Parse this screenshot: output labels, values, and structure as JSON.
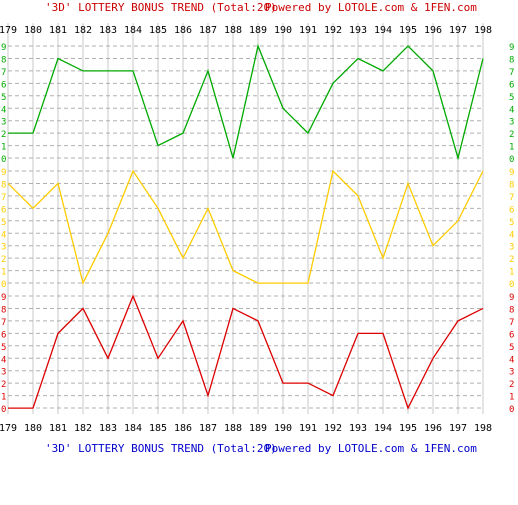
{
  "header": {
    "title_text": "'3D' LOTTERY BONUS TREND (Total:20)",
    "powered_text": "Powered by LOTOLE.com & 1FEN.com"
  },
  "footer": {
    "title_text": "'3D' LOTTERY BONUS TREND (Total:20)",
    "powered_text": "Powered by LOTOLE.com & 1FEN.com"
  },
  "colors": {
    "header_title": "#cc0000",
    "footer_title": "#0000cc",
    "grid_solid": "#c8c8c8",
    "grid_dash": "#b0b0b0",
    "axis_text": "#000000"
  },
  "chart_data": {
    "type": "line",
    "x": [
      "179",
      "180",
      "181",
      "182",
      "183",
      "184",
      "185",
      "186",
      "187",
      "188",
      "189",
      "190",
      "191",
      "192",
      "193",
      "194",
      "195",
      "196",
      "197",
      "198"
    ],
    "y_ticks": [
      "0",
      "1",
      "2",
      "3",
      "4",
      "5",
      "6",
      "7",
      "8",
      "9"
    ],
    "ylim": [
      0,
      9
    ],
    "grid": true,
    "series": [
      {
        "color": "#00aa00",
        "values": [
          2,
          2,
          8,
          7,
          7,
          7,
          1,
          2,
          7,
          0,
          9,
          4,
          2,
          6,
          8,
          7,
          9,
          7,
          0,
          8
        ]
      },
      {
        "color": "#ffcc00",
        "values": [
          8,
          6,
          8,
          0,
          4,
          9,
          6,
          2,
          6,
          1,
          0,
          0,
          0,
          9,
          7,
          2,
          8,
          3,
          5,
          9
        ]
      },
      {
        "color": "#dd0000",
        "values": [
          0,
          0,
          6,
          8,
          4,
          9,
          4,
          7,
          1,
          8,
          7,
          2,
          2,
          1,
          6,
          6,
          0,
          4,
          7,
          8
        ]
      }
    ]
  }
}
